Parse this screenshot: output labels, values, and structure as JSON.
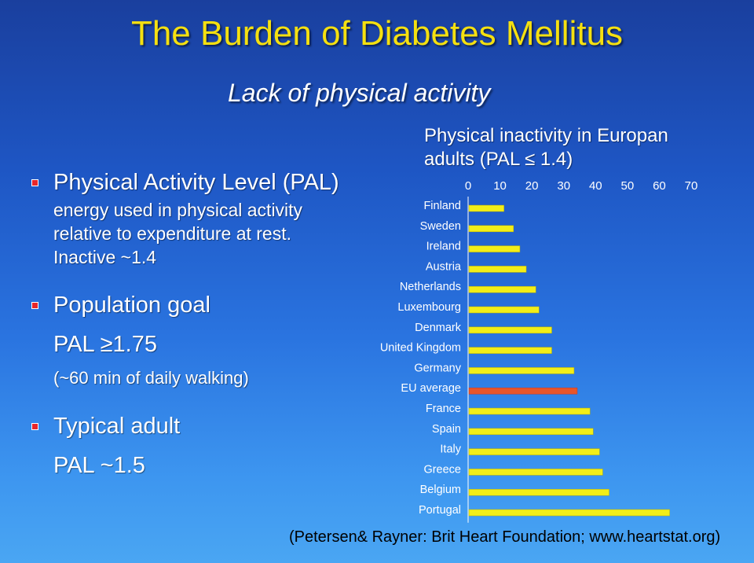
{
  "header": {
    "title": "The Burden of Diabetes Mellitus",
    "subtitle": "Lack of physical activity"
  },
  "left_panel": {
    "pal_heading": "Physical Activity Level (PAL)",
    "pal_line1": "energy used in physical activity",
    "pal_line2": "relative to expenditure at rest.",
    "pal_line3": "Inactive ~1.4",
    "goal_heading": "Population goal",
    "goal_value": "PAL ≥1.75",
    "goal_note": "(~60 min of daily walking)",
    "adult_heading": "Typical adult",
    "adult_value": "PAL ~1.5"
  },
  "chart_data": {
    "type": "bar",
    "orientation": "horizontal",
    "title_line1": "Physical inactivity in Europan",
    "title_line2": "adults (PAL ≤ 1.4)",
    "categories": [
      "Finland",
      "Sweden",
      "Ireland",
      "Austria",
      "Netherlands",
      "Luxembourg",
      "Denmark",
      "United Kingdom",
      "Germany",
      "EU average",
      "France",
      "Spain",
      "Italy",
      "Greece",
      "Belgium",
      "Portugal"
    ],
    "values": [
      11,
      14,
      16,
      18,
      21,
      22,
      26,
      26,
      33,
      34,
      38,
      39,
      41,
      42,
      44,
      63
    ],
    "highlight_category": "EU average",
    "x_ticks": [
      "0",
      "10",
      "20",
      "30",
      "40",
      "50",
      "60",
      "70"
    ],
    "xlim": [
      0,
      70
    ],
    "bar_color": "#f2ee18",
    "highlight_color": "#e8552a"
  },
  "footer": {
    "citation": "(Petersen& Rayner: Brit Heart Foundation; www.heartstat.org)"
  }
}
